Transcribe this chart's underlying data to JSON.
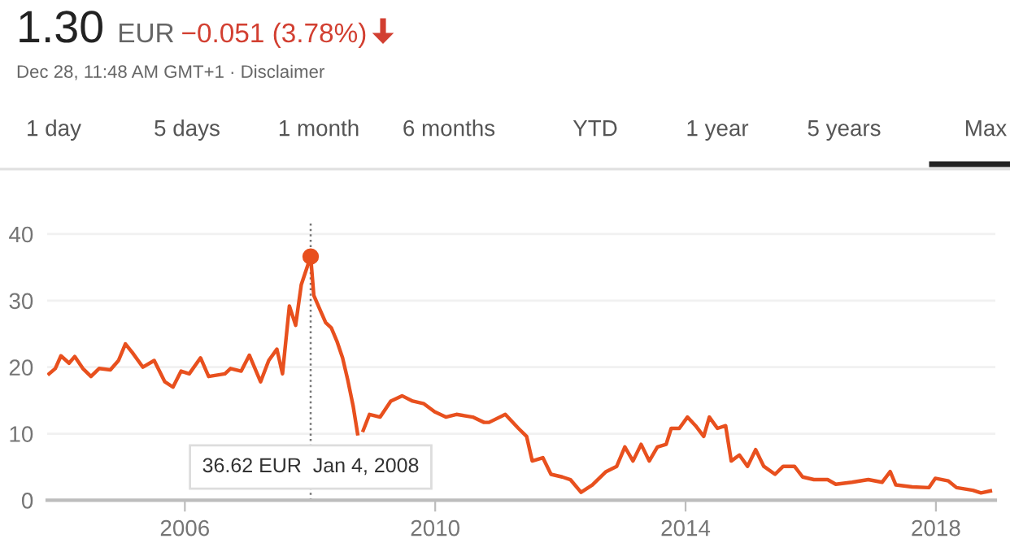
{
  "chart_data": {
    "type": "line",
    "title": "1.30",
    "subtitle": "Dec 28, 11:48 AM GMT+1 · Disclaimer",
    "annotations": [
      "EUR",
      "−0.051 (3.78%)",
      "1 day",
      "5 days",
      "1 month",
      "6 months",
      "YTD",
      "1 year",
      "5 years",
      "Max",
      "36.62 EUR  Jan 4, 2008"
    ],
    "series": [
      {
        "color": "#e8501e",
        "x": [
          2003.83,
          2003.93,
          2004.02,
          2004.15,
          2004.24,
          2004.37,
          2004.5,
          2004.63,
          2004.81,
          2004.94,
          2005.05,
          2005.16,
          2005.33,
          2005.51,
          2005.68,
          2005.81,
          2005.94,
          2006.07,
          2006.25,
          2006.38,
          2006.64,
          2006.73,
          2006.9,
          2007.03,
          2007.21,
          2007.34,
          2007.47,
          2007.56,
          2007.67,
          2007.77,
          2007.86,
          2008.01,
          2008.06,
          2008.17,
          2008.25,
          2008.34,
          2008.43,
          2008.52,
          2008.6,
          2008.69,
          2008.76,
          2008.8,
          2008.85,
          2008.95,
          2009.12,
          2009.29,
          2009.47,
          2009.64,
          2009.82,
          2009.99,
          2010.17,
          2010.34,
          2010.6,
          2010.78,
          2010.86,
          2011.12,
          2011.33,
          2011.46,
          2011.55,
          2011.72,
          2011.85,
          2012.03,
          2012.16,
          2012.33,
          2012.51,
          2012.73,
          2012.9,
          2013.03,
          2013.16,
          2013.29,
          2013.42,
          2013.55,
          2013.69,
          2013.77,
          2013.9,
          2014.03,
          2014.16,
          2014.29,
          2014.38,
          2014.51,
          2014.64,
          2014.73,
          2014.86,
          2014.99,
          2015.12,
          2015.25,
          2015.43,
          2015.56,
          2015.74,
          2015.87,
          2016.05,
          2016.27,
          2016.4,
          2016.66,
          2016.92,
          2017.14,
          2017.27,
          2017.36,
          2017.62,
          2017.89,
          2017.99,
          2018.2,
          2018.33,
          2018.59,
          2018.72,
          2018.87
        ],
        "values": [
          19.0,
          19.8,
          21.7,
          20.6,
          21.6,
          19.8,
          18.6,
          19.8,
          19.6,
          21.0,
          23.5,
          22.2,
          20.0,
          21.0,
          17.8,
          17.0,
          19.4,
          19.0,
          21.4,
          18.6,
          19.0,
          19.8,
          19.4,
          21.8,
          17.8,
          21.0,
          22.7,
          19.0,
          29.2,
          26.3,
          32.4,
          36.62,
          30.8,
          28.4,
          26.7,
          25.9,
          23.9,
          21.4,
          18.2,
          14.1,
          10.0,
          null,
          10.5,
          12.9,
          12.5,
          14.9,
          15.7,
          14.9,
          14.5,
          13.3,
          12.5,
          12.9,
          12.5,
          11.7,
          11.7,
          12.9,
          10.8,
          9.6,
          5.9,
          6.4,
          3.9,
          3.5,
          3.1,
          1.2,
          2.3,
          4.3,
          5.1,
          8.0,
          5.9,
          8.4,
          5.9,
          8.0,
          8.4,
          10.8,
          10.8,
          12.5,
          11.2,
          9.6,
          12.5,
          10.8,
          11.2,
          5.9,
          6.8,
          5.1,
          7.6,
          5.1,
          3.9,
          5.1,
          5.1,
          3.5,
          3.1,
          3.1,
          2.4,
          2.7,
          3.1,
          2.7,
          4.3,
          2.3,
          2.0,
          1.9,
          3.3,
          2.9,
          1.9,
          1.5,
          1.1,
          1.4
        ]
      },
      {
        "type": "scatter",
        "color": "#e8501e",
        "x": [
          2008.01
        ],
        "values": [
          36.62
        ],
        "marker": "circle"
      }
    ],
    "ref_lines": [
      {
        "axis": "x",
        "value": 2008.01,
        "color": "#757575",
        "line_style": "dotted"
      }
    ],
    "xlim": [
      2003.8,
      2018.95
    ],
    "ylim": [
      0,
      42
    ],
    "xticks": [
      2006,
      2010,
      2014,
      2018
    ],
    "yticks": [
      0,
      10,
      20,
      30,
      40
    ],
    "grid": "y"
  }
}
